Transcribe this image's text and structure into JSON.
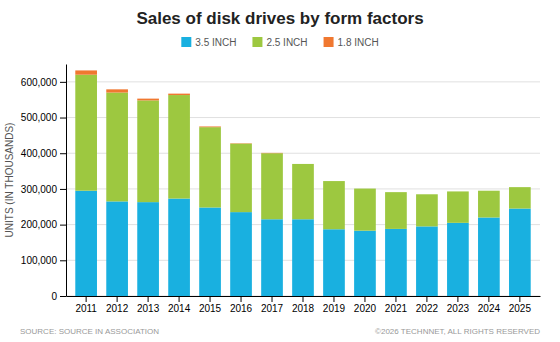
{
  "chart_data": {
    "type": "bar",
    "title": "Sales of disk drives by form factors",
    "y_label": "UNITS (IN THOUSANDS)",
    "categories": [
      "2011",
      "2012",
      "2013",
      "2014",
      "2015",
      "2016",
      "2017",
      "2018",
      "2019",
      "2020",
      "2021",
      "2022",
      "2023",
      "2024",
      "2025"
    ],
    "series": [
      {
        "name": "3.5 INCH",
        "color": "#19B0E0",
        "values": [
          295000,
          265000,
          263000,
          273000,
          248000,
          235000,
          215000,
          215000,
          187000,
          183000,
          188000,
          195000,
          205000,
          220000,
          245000
        ]
      },
      {
        "name": "2.5 INCH",
        "color": "#9DC840",
        "values": [
          325000,
          305000,
          285000,
          290000,
          225000,
          192000,
          185000,
          155000,
          135000,
          118000,
          103000,
          90000,
          88000,
          75000,
          60000
        ]
      },
      {
        "name": "1.8 INCH",
        "color": "#F07830",
        "values": [
          12000,
          9000,
          5000,
          4000,
          2000,
          1000,
          1000,
          0,
          0,
          0,
          0,
          0,
          0,
          0,
          0
        ]
      }
    ],
    "stacked": true,
    "ylim": [
      0,
      650000
    ],
    "yticks": [
      0,
      {
        "value": 100000,
        "label": "100,000"
      },
      {
        "value": 200000,
        "label": "200,000"
      },
      {
        "value": 300000,
        "label": "300,000"
      },
      {
        "value": 400000,
        "label": "400,000"
      },
      {
        "value": 500000,
        "label": "500,000"
      },
      {
        "value": 600000,
        "label": "600,000"
      }
    ],
    "grid": true,
    "legend": "top",
    "annotations": [
      "SOURCE: SOURCE IN ASSOCIATION",
      "©2026 TECHNNET, ALL RIGHTS RESERVED"
    ]
  }
}
